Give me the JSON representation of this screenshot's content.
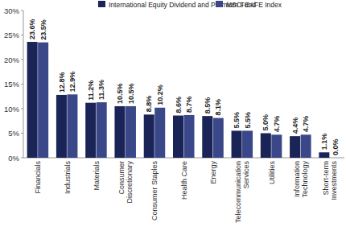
{
  "chart_data": {
    "type": "bar",
    "categories": [
      "Financials",
      "Industrials",
      "Materials",
      "Consumer Discretionary",
      "Consumer Staples",
      "Health Care",
      "Energy",
      "Telecommunication Services",
      "Utilities",
      "Information Technology",
      "Short-term Investments"
    ],
    "series": [
      {
        "name": "International Equity Dividend and Premium Fund",
        "color": "#1b2456",
        "values": [
          23.6,
          12.8,
          11.2,
          10.5,
          8.8,
          8.6,
          8.5,
          5.5,
          5.0,
          4.4,
          1.1
        ],
        "value_labels": [
          "23.6%",
          "12.8%",
          "11.2%",
          "10.5%",
          "8.8%",
          "8.6%",
          "8.5%",
          "5.5%",
          "5.0%",
          "4.4%",
          "1.1%"
        ]
      },
      {
        "name": "MSCI EAFE Index",
        "color": "#3a4889",
        "values": [
          23.5,
          12.9,
          11.3,
          10.5,
          10.2,
          8.7,
          8.1,
          5.5,
          4.7,
          4.7,
          0.0
        ],
        "value_labels": [
          "23.5%",
          "12.9%",
          "11.3%",
          "10.5%",
          "10.2%",
          "8.7%",
          "8.1%",
          "5.5%",
          "4.7%",
          "4.7%",
          "0.0%"
        ]
      }
    ],
    "ylim": [
      0,
      30
    ],
    "yticks": [
      {
        "value": 0,
        "label": "0%"
      },
      {
        "value": 5,
        "label": "5%"
      },
      {
        "value": 10,
        "label": "10%"
      },
      {
        "value": 15,
        "label": "15%"
      },
      {
        "value": 20,
        "label": "20%"
      },
      {
        "value": 25,
        "label": "25%"
      },
      {
        "value": 30,
        "label": "30%"
      }
    ],
    "grid": false,
    "legend": "top",
    "data_labels": true
  }
}
